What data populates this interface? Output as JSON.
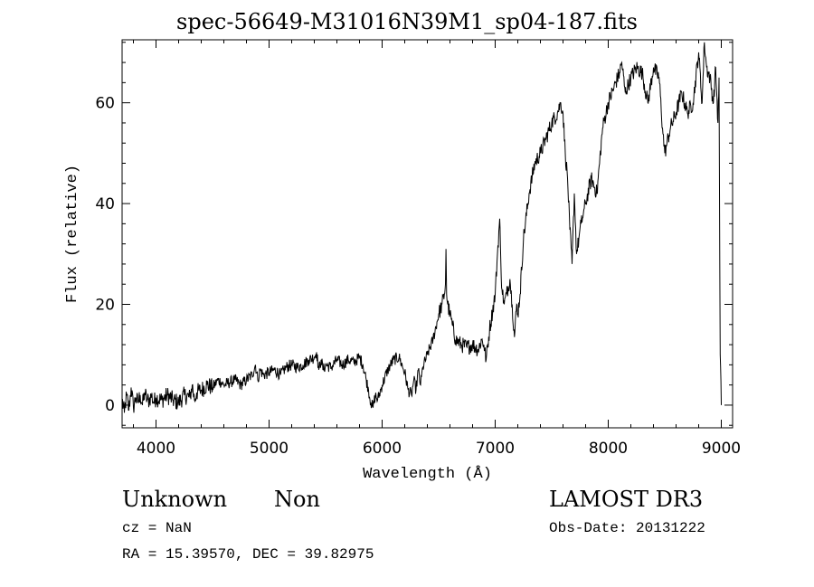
{
  "chart_data": {
    "type": "line",
    "title": "spec-56649-M31016N39M1_sp04-187.fits",
    "xlabel": "Wavelength (Å)",
    "ylabel": "Flux (relative)",
    "xlim": [
      3700,
      9100
    ],
    "ylim": [
      -4.5,
      72.5
    ],
    "xticks": [
      4000,
      5000,
      6000,
      7000,
      8000,
      9000
    ],
    "yticks": [
      0,
      20,
      40,
      60
    ],
    "series": [
      {
        "x": [
          3700,
          3720,
          3740,
          3760,
          3780,
          3800,
          3820,
          3840,
          3860,
          3880,
          3900,
          3920,
          3940,
          3960,
          3980,
          4000,
          4050,
          4100,
          4150,
          4200,
          4250,
          4300,
          4320,
          4340,
          4360,
          4400,
          4450,
          4500,
          4550,
          4600,
          4650,
          4700,
          4750,
          4800,
          4850,
          4880,
          4900,
          4920,
          4950,
          5000,
          5050,
          5100,
          5150,
          5200,
          5250,
          5300,
          5350,
          5400,
          5420,
          5440,
          5460,
          5480,
          5500,
          5550,
          5600,
          5650,
          5700,
          5750,
          5800,
          5830,
          5860,
          5880,
          5900,
          5920,
          5940,
          5960,
          6000,
          6050,
          6100,
          6150,
          6200,
          6230,
          6260,
          6280,
          6300,
          6320,
          6340,
          6360,
          6400,
          6450,
          6500,
          6530,
          6550,
          6560,
          6565,
          6570,
          6580,
          6600,
          6620,
          6650,
          6700,
          6750,
          6800,
          6850,
          6880,
          6900,
          6920,
          6950,
          7000,
          7020,
          7040,
          7050,
          7060,
          7080,
          7100,
          7130,
          7150,
          7170,
          7190,
          7200,
          7220,
          7250,
          7300,
          7350,
          7400,
          7450,
          7500,
          7550,
          7580,
          7600,
          7620,
          7640,
          7660,
          7680,
          7700,
          7720,
          7740,
          7760,
          7780,
          7800,
          7850,
          7900,
          7950,
          8000,
          8050,
          8100,
          8120,
          8150,
          8200,
          8250,
          8300,
          8350,
          8400,
          8450,
          8480,
          8500,
          8520,
          8550,
          8600,
          8650,
          8700,
          8750,
          8800,
          8830,
          8850,
          8870,
          8900,
          8930,
          8950,
          8970,
          8980,
          8990,
          9000
        ],
        "y": [
          1.0,
          -1.5,
          2.0,
          -1.0,
          3.5,
          -0.5,
          1.5,
          0.5,
          2.0,
          0.0,
          2.5,
          1.0,
          1.0,
          2.0,
          0.5,
          1.5,
          1.0,
          2.0,
          1.0,
          0.5,
          2.0,
          1.5,
          4.0,
          1.0,
          2.5,
          3.0,
          4.0,
          3.5,
          5.0,
          4.0,
          4.5,
          5.0,
          4.0,
          5.0,
          6.0,
          8.0,
          5.0,
          7.0,
          6.0,
          6.5,
          7.0,
          6.0,
          7.5,
          8.0,
          7.5,
          8.0,
          9.0,
          9.5,
          10.5,
          7.0,
          9.0,
          7.0,
          8.0,
          7.5,
          9.0,
          8.0,
          9.0,
          8.5,
          9.5,
          8.0,
          5.0,
          3.0,
          0.5,
          -0.5,
          2.0,
          1.0,
          4.0,
          7.0,
          9.0,
          9.5,
          6.5,
          3.0,
          2.0,
          5.0,
          3.0,
          7.0,
          4.0,
          7.5,
          10.0,
          13.0,
          18.0,
          20.0,
          22.0,
          24.0,
          31.0,
          22.0,
          20.0,
          18.0,
          16.0,
          13.0,
          12.0,
          11.5,
          12.0,
          11.0,
          13.0,
          12.0,
          9.0,
          15.0,
          22.0,
          30.0,
          37.0,
          28.0,
          23.0,
          20.0,
          22.0,
          25.0,
          20.0,
          13.5,
          20.0,
          18.0,
          22.0,
          33.0,
          42.0,
          48.0,
          50.0,
          53.0,
          56.0,
          58.0,
          60.0,
          58.0,
          50.0,
          45.0,
          35.0,
          28.0,
          42.0,
          30.0,
          33.0,
          36.0,
          38.0,
          40.0,
          45.0,
          42.0,
          55.0,
          60.0,
          63.0,
          66.0,
          68.0,
          62.0,
          65.0,
          67.0,
          66.0,
          60.0,
          67.0,
          65.0,
          55.0,
          50.0,
          52.0,
          55.0,
          58.0,
          62.0,
          58.0,
          60.0,
          70.0,
          60.0,
          72.0,
          67.0,
          65.0,
          60.0,
          67.0,
          56.0,
          65.0,
          10.0,
          0.0
        ]
      }
    ]
  },
  "annotations": {
    "object_class": "Unknown",
    "object_subclass": "Non",
    "survey": "LAMOST DR3",
    "cz": "cz = NaN",
    "obs_date": "Obs-Date: 20131222",
    "radec": "RA =  15.39570, DEC =  39.82975"
  }
}
